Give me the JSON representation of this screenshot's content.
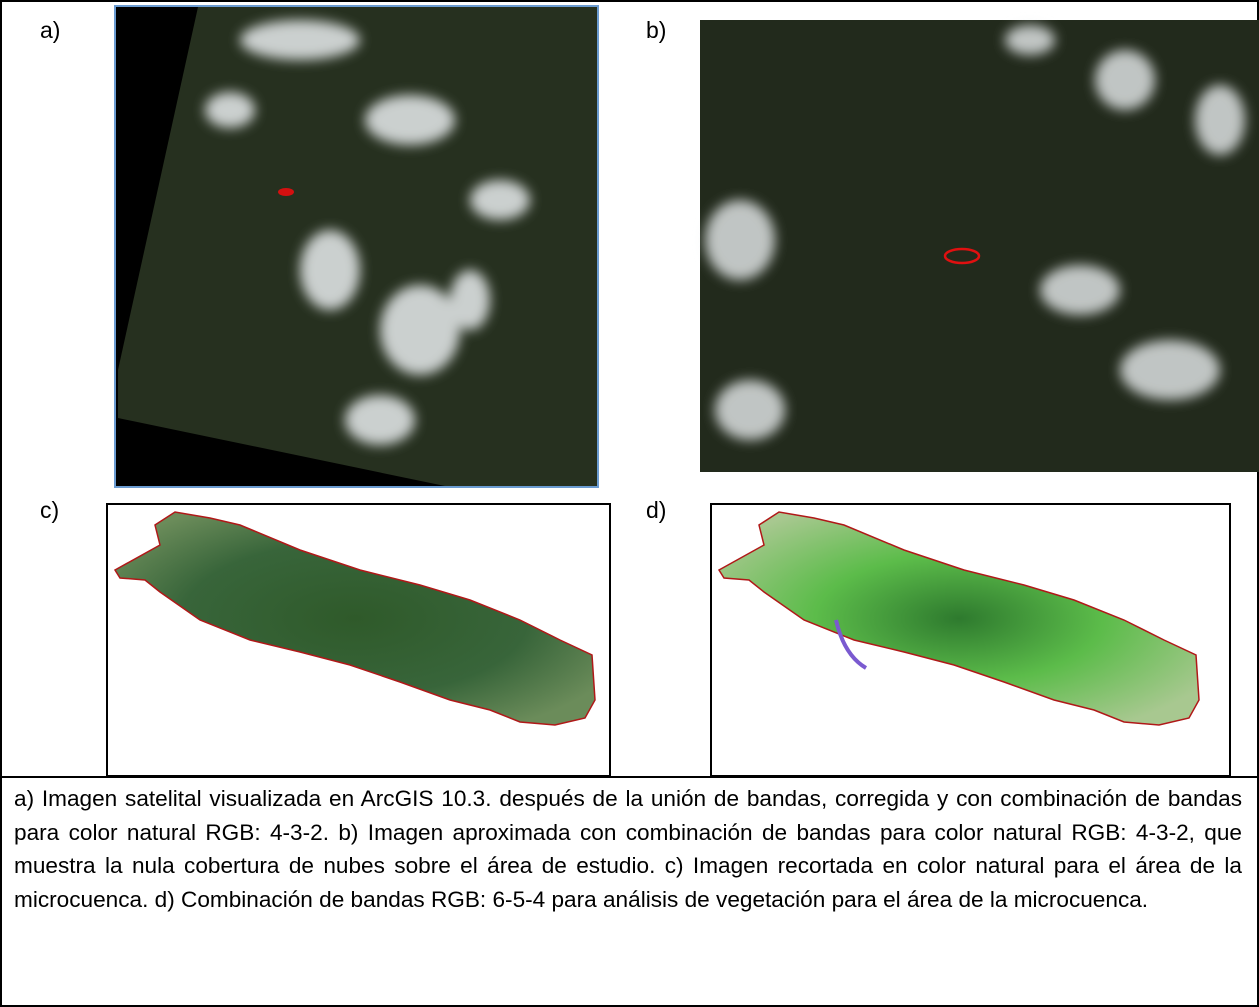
{
  "panels": [
    {
      "label": "a)"
    },
    {
      "label": "b)"
    },
    {
      "label": "c)"
    },
    {
      "label": "d)"
    }
  ],
  "caption": "a) Imagen satelital visualizada en ArcGIS 10.3. después de la unión de bandas, corregida y con combinación de bandas para color natural RGB: 4-3-2. b) Imagen aproximada con combinación de bandas para color natural RGB: 4-3-2, que muestra la nula cobertura de nubes sobre el área de estudio. c) Imagen recortada en color natural para el área de la microcuenca. d) Combinación de bandas RGB: 6-5-4 para análisis de vegetación para el área de la microcuenca."
}
